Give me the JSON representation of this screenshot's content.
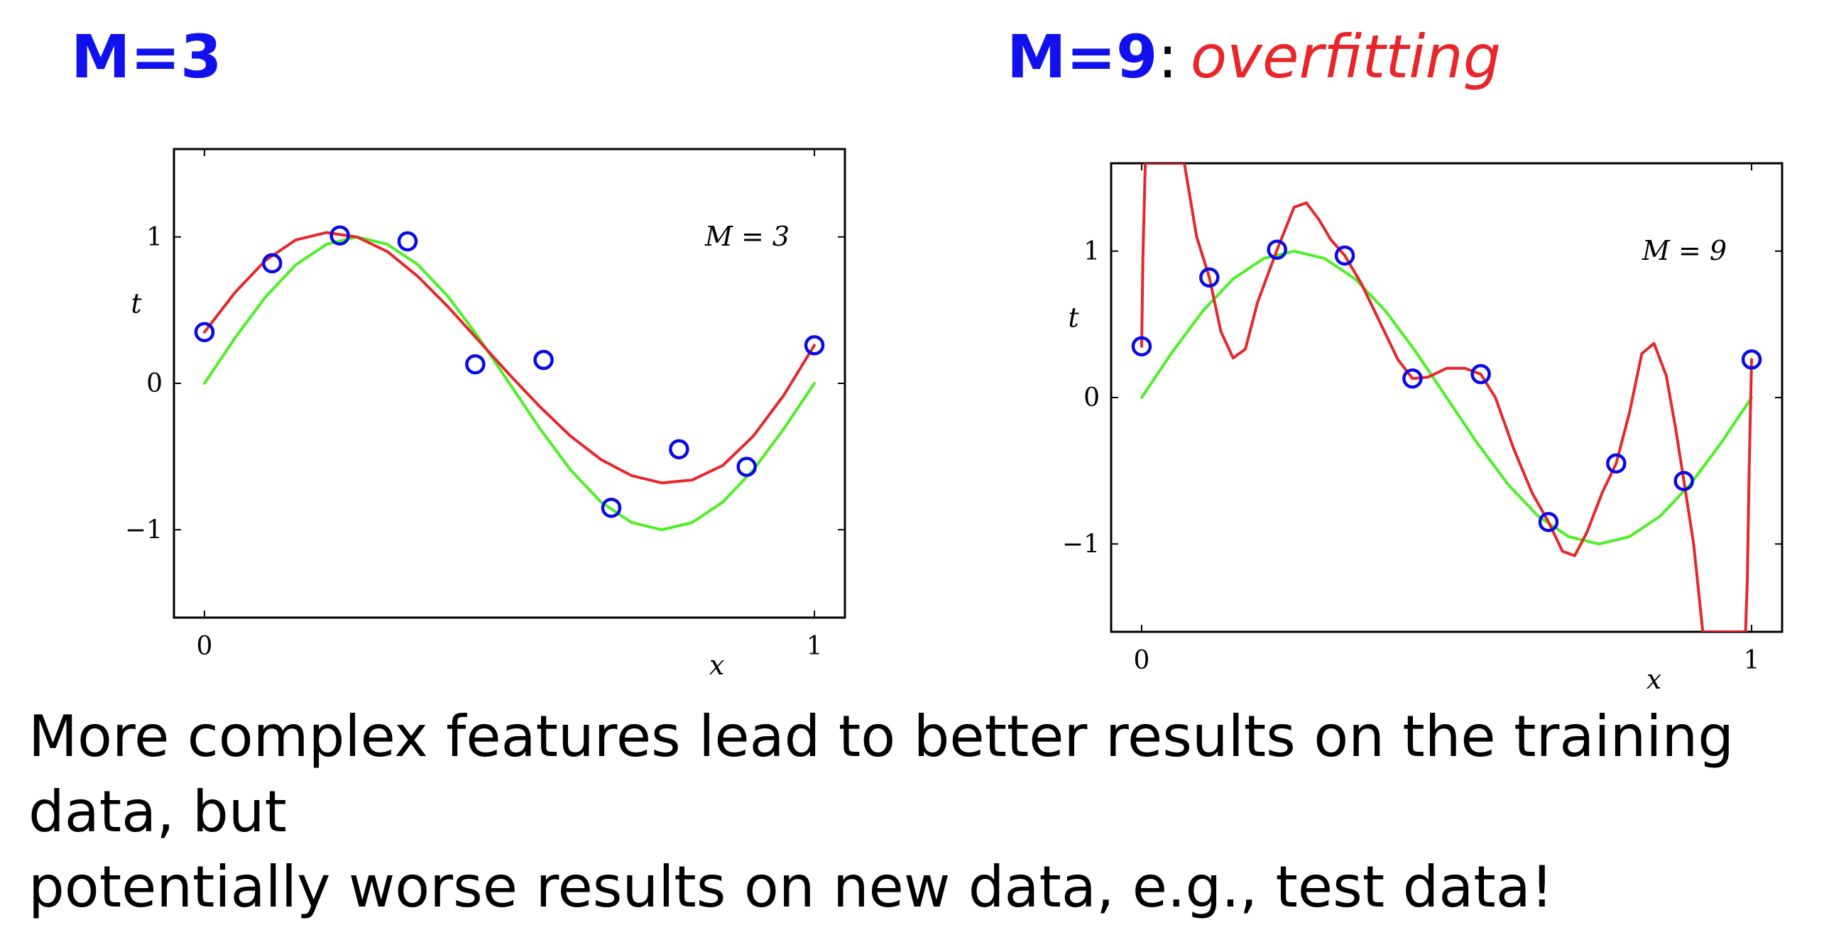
{
  "slide": {
    "left_heading": "M=3",
    "right_heading_main": "M=9",
    "right_heading_colon": ":",
    "right_heading_note": "overfitting",
    "caption_line1": "More complex features lead to better results on the training data, but",
    "caption_line2": "potentially worse results on new data, e.g., test data!",
    "colors": {
      "heading": "#1111ee",
      "note": "#e8262a",
      "fit": "#e8262a",
      "truth": "#4cf024",
      "points": "#0a0ae6"
    }
  },
  "chart_data": [
    {
      "type": "line",
      "annotation": "M = 3",
      "xlabel": "x",
      "ylabel": "t",
      "xlim": [
        -0.05,
        1.05
      ],
      "ylim": [
        -1.6,
        1.6
      ],
      "xticks": [
        0,
        1
      ],
      "xtick_labels": [
        "0",
        "1"
      ],
      "yticks": [
        -1,
        0,
        1
      ],
      "ytick_labels": [
        "−1",
        "0",
        "1"
      ],
      "grid": false,
      "points": {
        "x": [
          0,
          0.111,
          0.222,
          0.333,
          0.444,
          0.556,
          0.667,
          0.778,
          0.889,
          1.0
        ],
        "y": [
          0.35,
          0.82,
          1.01,
          0.97,
          0.13,
          0.16,
          -0.85,
          -0.45,
          -0.57,
          0.26
        ]
      },
      "series": [
        {
          "kind": "true-function",
          "x": [
            0,
            0.05,
            0.1,
            0.15,
            0.2,
            0.25,
            0.3,
            0.35,
            0.4,
            0.45,
            0.5,
            0.55,
            0.6,
            0.65,
            0.7,
            0.75,
            0.8,
            0.85,
            0.9,
            0.95,
            1.0
          ],
          "values": [
            0,
            0.31,
            0.59,
            0.81,
            0.95,
            1.0,
            0.95,
            0.81,
            0.59,
            0.31,
            0,
            -0.31,
            -0.59,
            -0.81,
            -0.95,
            -1.0,
            -0.95,
            -0.81,
            -0.59,
            -0.31,
            0
          ]
        },
        {
          "kind": "polynomial-fit",
          "x": [
            0,
            0.05,
            0.1,
            0.15,
            0.2,
            0.25,
            0.3,
            0.35,
            0.4,
            0.45,
            0.5,
            0.55,
            0.6,
            0.65,
            0.7,
            0.75,
            0.8,
            0.85,
            0.9,
            0.95,
            1.0
          ],
          "values": [
            0.35,
            0.62,
            0.84,
            0.98,
            1.03,
            1.0,
            0.9,
            0.73,
            0.52,
            0.29,
            0.06,
            -0.16,
            -0.36,
            -0.52,
            -0.63,
            -0.68,
            -0.66,
            -0.56,
            -0.36,
            -0.08,
            0.26
          ]
        }
      ]
    },
    {
      "type": "line",
      "annotation": "M = 9",
      "xlabel": "x",
      "ylabel": "t",
      "xlim": [
        -0.05,
        1.05
      ],
      "ylim": [
        -1.6,
        1.6
      ],
      "xticks": [
        0,
        1
      ],
      "xtick_labels": [
        "0",
        "1"
      ],
      "yticks": [
        -1,
        0,
        1
      ],
      "ytick_labels": [
        "−1",
        "0",
        "1"
      ],
      "grid": false,
      "points": {
        "x": [
          0,
          0.111,
          0.222,
          0.333,
          0.444,
          0.556,
          0.667,
          0.778,
          0.889,
          1.0
        ],
        "y": [
          0.35,
          0.82,
          1.01,
          0.97,
          0.13,
          0.16,
          -0.85,
          -0.45,
          -0.57,
          0.26
        ]
      },
      "series": [
        {
          "kind": "true-function",
          "x": [
            0,
            0.05,
            0.1,
            0.15,
            0.2,
            0.25,
            0.3,
            0.35,
            0.4,
            0.45,
            0.5,
            0.55,
            0.6,
            0.65,
            0.7,
            0.75,
            0.8,
            0.85,
            0.9,
            0.95,
            1.0
          ],
          "values": [
            0,
            0.31,
            0.59,
            0.81,
            0.95,
            1.0,
            0.95,
            0.81,
            0.59,
            0.31,
            0,
            -0.31,
            -0.59,
            -0.81,
            -0.95,
            -1.0,
            -0.95,
            -0.81,
            -0.59,
            -0.31,
            0
          ]
        },
        {
          "kind": "polynomial-fit",
          "x": [
            0,
            0.002,
            0.006,
            0.01,
            0.07,
            0.09,
            0.111,
            0.13,
            0.15,
            0.17,
            0.19,
            0.222,
            0.25,
            0.27,
            0.29,
            0.31,
            0.333,
            0.36,
            0.39,
            0.42,
            0.444,
            0.47,
            0.5,
            0.53,
            0.556,
            0.58,
            0.61,
            0.64,
            0.667,
            0.69,
            0.71,
            0.73,
            0.755,
            0.778,
            0.8,
            0.82,
            0.84,
            0.86,
            0.875,
            0.889,
            0.905,
            0.92,
            0.935,
            0.99,
            0.993,
            0.996,
            1.0
          ],
          "values": [
            0.35,
            0.95,
            1.6,
            1.6,
            1.6,
            1.1,
            0.82,
            0.45,
            0.27,
            0.33,
            0.65,
            1.01,
            1.3,
            1.33,
            1.22,
            1.08,
            0.97,
            0.78,
            0.52,
            0.26,
            0.13,
            0.14,
            0.2,
            0.2,
            0.16,
            0.0,
            -0.35,
            -0.65,
            -0.85,
            -1.05,
            -1.08,
            -0.92,
            -0.65,
            -0.45,
            -0.1,
            0.3,
            0.37,
            0.15,
            -0.2,
            -0.57,
            -1.0,
            -1.6,
            -1.6,
            -1.6,
            -1.25,
            -0.5,
            0.26
          ]
        }
      ]
    }
  ]
}
